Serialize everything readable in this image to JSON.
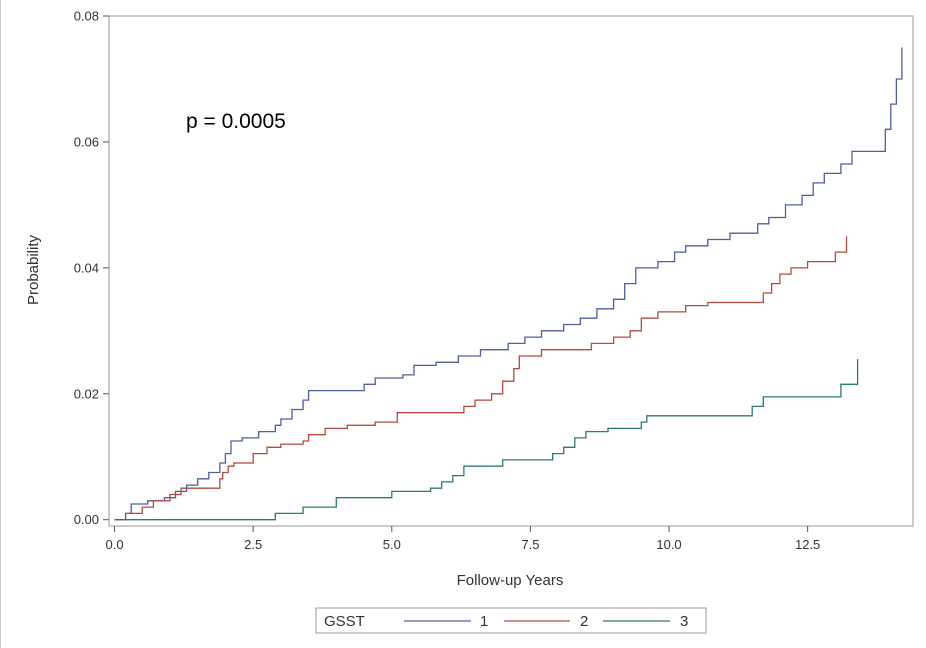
{
  "chart_data": {
    "type": "line",
    "step": true,
    "title": "",
    "xlabel": "Follow-up Years",
    "ylabel": "Probability",
    "annotation": "p = 0.0005",
    "xlim": [
      -0.1,
      14.4
    ],
    "ylim": [
      -0.001,
      0.08
    ],
    "x_ticks": [
      {
        "value": 0,
        "label": "0.0"
      },
      {
        "value": 2.5,
        "label": "2.5"
      },
      {
        "value": 5,
        "label": "5.0"
      },
      {
        "value": 7.5,
        "label": "7.5"
      },
      {
        "value": 10,
        "label": "10.0"
      },
      {
        "value": 12.5,
        "label": "12.5"
      }
    ],
    "y_ticks": [
      {
        "value": 0,
        "label": "0.00"
      },
      {
        "value": 0.02,
        "label": "0.02"
      },
      {
        "value": 0.04,
        "label": "0.04"
      },
      {
        "value": 0.06,
        "label": "0.06"
      },
      {
        "value": 0.08,
        "label": "0.08"
      }
    ],
    "grid": false,
    "legend": {
      "title": "GSST",
      "placement": "bottom"
    },
    "series": [
      {
        "name": "1",
        "color": "#4f5f9f",
        "points": [
          [
            0,
            0
          ],
          [
            0.2,
            0.001
          ],
          [
            0.3,
            0.0025
          ],
          [
            0.6,
            0.003
          ],
          [
            0.9,
            0.0035
          ],
          [
            1.1,
            0.0045
          ],
          [
            1.3,
            0.0055
          ],
          [
            1.5,
            0.0065
          ],
          [
            1.7,
            0.0075
          ],
          [
            1.9,
            0.009
          ],
          [
            2.0,
            0.0105
          ],
          [
            2.1,
            0.0125
          ],
          [
            2.3,
            0.013
          ],
          [
            2.6,
            0.014
          ],
          [
            2.9,
            0.015
          ],
          [
            3.0,
            0.016
          ],
          [
            3.2,
            0.0175
          ],
          [
            3.4,
            0.019
          ],
          [
            3.5,
            0.0205
          ],
          [
            4.5,
            0.0215
          ],
          [
            4.7,
            0.0225
          ],
          [
            5.2,
            0.023
          ],
          [
            5.4,
            0.0245
          ],
          [
            5.8,
            0.025
          ],
          [
            6.2,
            0.026
          ],
          [
            6.6,
            0.027
          ],
          [
            7.1,
            0.028
          ],
          [
            7.4,
            0.029
          ],
          [
            7.7,
            0.03
          ],
          [
            8.1,
            0.031
          ],
          [
            8.4,
            0.032
          ],
          [
            8.7,
            0.0335
          ],
          [
            9.0,
            0.035
          ],
          [
            9.2,
            0.0375
          ],
          [
            9.4,
            0.04
          ],
          [
            9.8,
            0.041
          ],
          [
            10.1,
            0.0425
          ],
          [
            10.3,
            0.0435
          ],
          [
            10.7,
            0.0445
          ],
          [
            11.1,
            0.0455
          ],
          [
            11.6,
            0.047
          ],
          [
            11.8,
            0.048
          ],
          [
            12.1,
            0.05
          ],
          [
            12.4,
            0.0515
          ],
          [
            12.6,
            0.0535
          ],
          [
            12.8,
            0.055
          ],
          [
            13.1,
            0.0565
          ],
          [
            13.3,
            0.0585
          ],
          [
            13.9,
            0.062
          ],
          [
            14.0,
            0.066
          ],
          [
            14.1,
            0.07
          ],
          [
            14.2,
            0.075
          ]
        ]
      },
      {
        "name": "2",
        "color": "#b54a3f",
        "points": [
          [
            0,
            0
          ],
          [
            0.2,
            0.001
          ],
          [
            0.5,
            0.002
          ],
          [
            0.7,
            0.003
          ],
          [
            1.0,
            0.004
          ],
          [
            1.2,
            0.005
          ],
          [
            1.9,
            0.0065
          ],
          [
            1.95,
            0.0075
          ],
          [
            2.05,
            0.0085
          ],
          [
            2.15,
            0.009
          ],
          [
            2.5,
            0.0105
          ],
          [
            2.75,
            0.0115
          ],
          [
            3.0,
            0.012
          ],
          [
            3.4,
            0.0125
          ],
          [
            3.5,
            0.0135
          ],
          [
            3.8,
            0.0145
          ],
          [
            4.2,
            0.015
          ],
          [
            4.7,
            0.0155
          ],
          [
            5.1,
            0.017
          ],
          [
            6.3,
            0.018
          ],
          [
            6.5,
            0.019
          ],
          [
            6.8,
            0.02
          ],
          [
            7.0,
            0.022
          ],
          [
            7.2,
            0.024
          ],
          [
            7.3,
            0.026
          ],
          [
            7.7,
            0.027
          ],
          [
            8.6,
            0.028
          ],
          [
            9.0,
            0.029
          ],
          [
            9.3,
            0.03
          ],
          [
            9.5,
            0.032
          ],
          [
            9.8,
            0.033
          ],
          [
            10.3,
            0.034
          ],
          [
            10.7,
            0.0345
          ],
          [
            11.7,
            0.036
          ],
          [
            11.85,
            0.0375
          ],
          [
            12.0,
            0.039
          ],
          [
            12.2,
            0.04
          ],
          [
            12.5,
            0.041
          ],
          [
            13.0,
            0.0425
          ],
          [
            13.2,
            0.045
          ]
        ]
      },
      {
        "name": "3",
        "color": "#2a7b74",
        "points": [
          [
            0,
            0
          ],
          [
            2.9,
            0.001
          ],
          [
            3.4,
            0.002
          ],
          [
            4.0,
            0.0035
          ],
          [
            5.0,
            0.0045
          ],
          [
            5.7,
            0.005
          ],
          [
            5.9,
            0.006
          ],
          [
            6.1,
            0.007
          ],
          [
            6.3,
            0.0085
          ],
          [
            7.0,
            0.0095
          ],
          [
            7.9,
            0.0105
          ],
          [
            8.1,
            0.0115
          ],
          [
            8.3,
            0.013
          ],
          [
            8.5,
            0.014
          ],
          [
            8.9,
            0.0145
          ],
          [
            9.5,
            0.0155
          ],
          [
            9.6,
            0.0165
          ],
          [
            11.5,
            0.018
          ],
          [
            11.7,
            0.0195
          ],
          [
            13.1,
            0.0215
          ],
          [
            13.4,
            0.0255
          ]
        ]
      }
    ]
  }
}
